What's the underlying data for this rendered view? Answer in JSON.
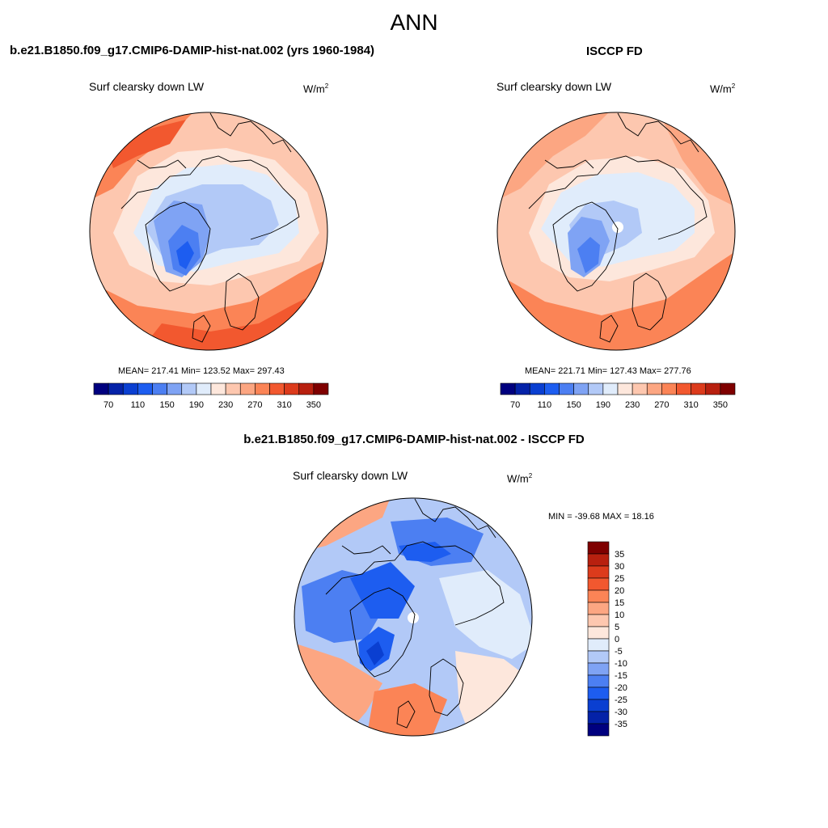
{
  "main_title": "ANN",
  "panels": {
    "model": {
      "title": "b.e21.B1850.f09_g17.CMIP6-DAMIP-hist-nat.002 (yrs 1960-1984)",
      "variable": "Surf clearsky down LW",
      "units_base": "W/m",
      "units_exp": "2",
      "stats": "MEAN= 217.41  Min= 123.52  Max= 297.43"
    },
    "obs": {
      "title": "ISCCP FD",
      "variable": "Surf clearsky down LW",
      "units_base": "W/m",
      "units_exp": "2",
      "stats": "MEAN= 221.71  Min= 127.43  Max= 277.76"
    },
    "diff": {
      "title": "b.e21.B1850.f09_g17.CMIP6-DAMIP-hist-nat.002 - ISCCP FD",
      "variable": "Surf clearsky down LW",
      "units_base": "W/m",
      "units_exp": "2",
      "stats": "MIN = -39.68 MAX =  18.16"
    }
  },
  "colorbar_top": {
    "colors": [
      "#00007f",
      "#0422a8",
      "#0a3fd1",
      "#1d5df0",
      "#4c7ff2",
      "#7fa3f4",
      "#b2c9f7",
      "#e0ecfb",
      "#fde7dc",
      "#fdc7af",
      "#fca682",
      "#fb8456",
      "#f2582f",
      "#dc3b1c",
      "#b8200f",
      "#7f0000"
    ],
    "labels": [
      "70",
      "110",
      "150",
      "190",
      "230",
      "270",
      "310",
      "350"
    ]
  },
  "colorbar_diff": {
    "colors": [
      "#7f0000",
      "#b8200f",
      "#dc3b1c",
      "#f2582f",
      "#fb8456",
      "#fca682",
      "#fdc7af",
      "#fde7dc",
      "#e0ecfb",
      "#b2c9f7",
      "#7fa3f4",
      "#4c7ff2",
      "#1d5df0",
      "#0a3fd1",
      "#0422a8",
      "#00007f"
    ],
    "labels": [
      "35",
      "30",
      "25",
      "20",
      "15",
      "10",
      "5",
      "0",
      "-5",
      "-10",
      "-15",
      "-20",
      "-25",
      "-30",
      "-35"
    ]
  }
}
